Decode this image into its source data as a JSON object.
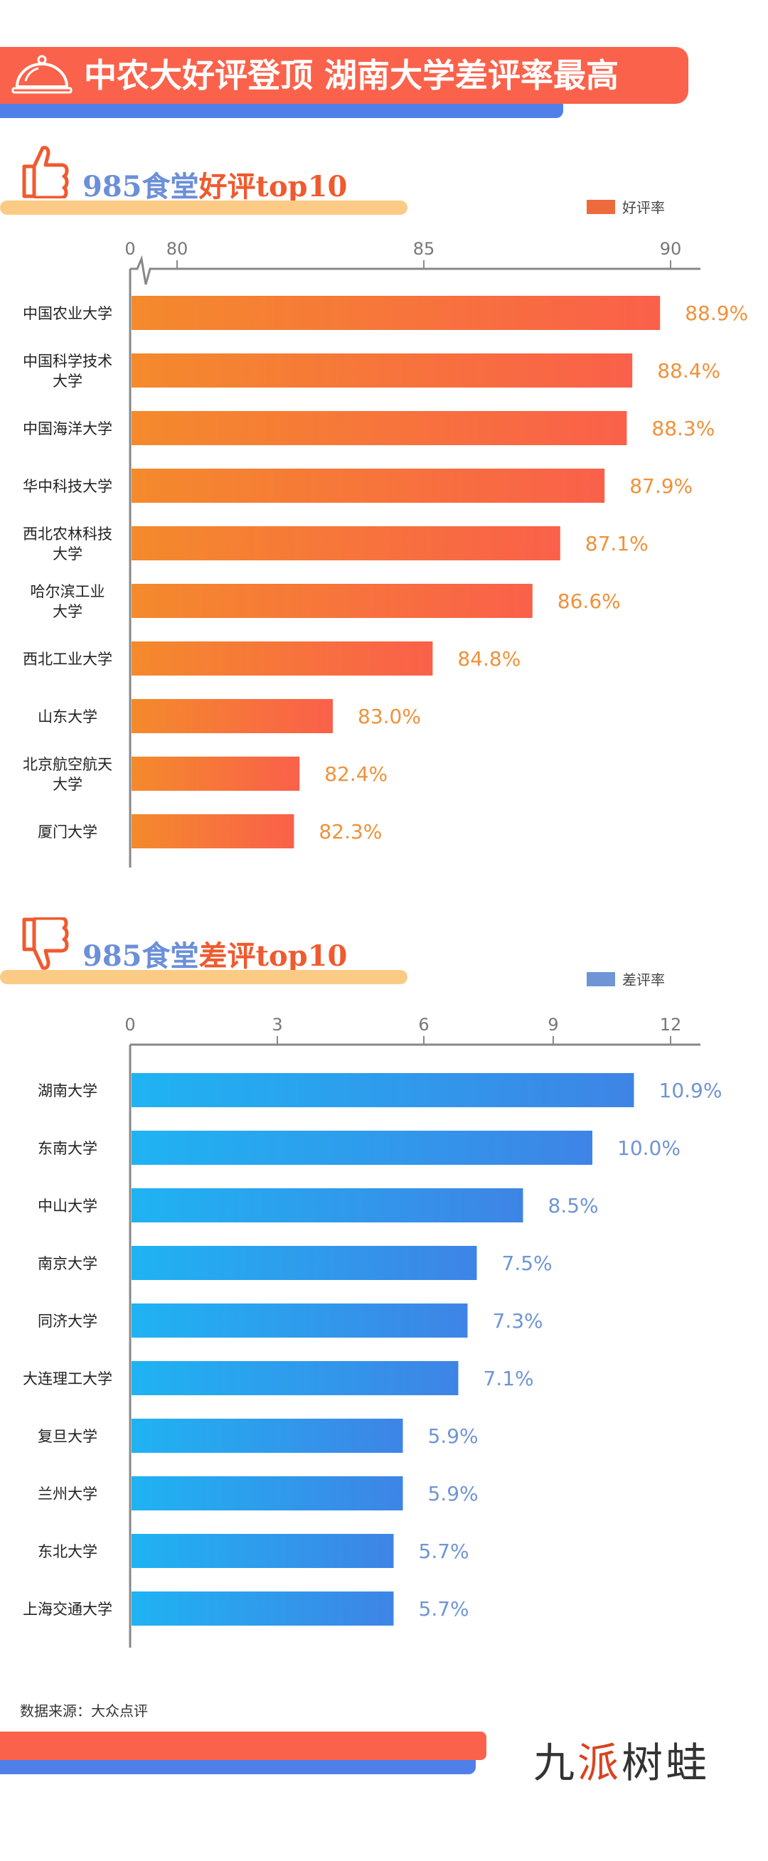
{
  "title": "中农大好评登顶 湖南大学差评率最高",
  "colors": {
    "title_bg": "#fb624b",
    "accent_blue": "#4f80ea",
    "good_bar_start": "#f48a2c",
    "good_bar_end": "#fa604a",
    "good_label": "#f0913a",
    "bad_bar_start": "#1fb3f2",
    "bad_bar_end": "#3e84e6",
    "bad_label": "#6f95d6"
  },
  "chart_data": [
    {
      "type": "bar",
      "orientation": "horizontal",
      "heading_prefix": "985食堂",
      "heading_highlight": "好评top10",
      "legend": "好评率",
      "axis_break": true,
      "xticks": [
        "0",
        "80",
        "85",
        "90"
      ],
      "xlim": [
        80,
        90
      ],
      "categories": [
        "中国农业大学",
        "中国科学技术\n大学",
        "中国海洋大学",
        "华中科技大学",
        "西北农林科技\n大学",
        "哈尔滨工业\n大学",
        "西北工业大学",
        "山东大学",
        "北京航空航天\n大学",
        "厦门大学"
      ],
      "values": [
        88.9,
        88.4,
        88.3,
        87.9,
        87.1,
        86.6,
        84.8,
        83.0,
        82.4,
        82.3
      ],
      "labels": [
        "88.9%",
        "88.4%",
        "88.3%",
        "87.9%",
        "87.1%",
        "86.6%",
        "84.8%",
        "83.0%",
        "82.4%",
        "82.3%"
      ]
    },
    {
      "type": "bar",
      "orientation": "horizontal",
      "heading_prefix": "985食堂",
      "heading_highlight": "差评top10",
      "legend": "差评率",
      "axis_break": false,
      "xticks": [
        "0",
        "3",
        "6",
        "9",
        "12"
      ],
      "xlim": [
        0,
        12
      ],
      "categories": [
        "湖南大学",
        "东南大学",
        "中山大学",
        "南京大学",
        "同济大学",
        "大连理工大学",
        "复旦大学",
        "兰州大学",
        "东北大学",
        "上海交通大学"
      ],
      "values": [
        10.9,
        10.0,
        8.5,
        7.5,
        7.3,
        7.1,
        5.9,
        5.9,
        5.7,
        5.7
      ],
      "labels": [
        "10.9%",
        "10.0%",
        "8.5%",
        "7.5%",
        "7.3%",
        "7.1%",
        "5.9%",
        "5.9%",
        "5.7%",
        "5.7%"
      ]
    }
  ],
  "footer": {
    "source": "数据来源：大众点评",
    "logo_part1": "九",
    "logo_part2": "派",
    "logo_part3": "树蛙"
  }
}
